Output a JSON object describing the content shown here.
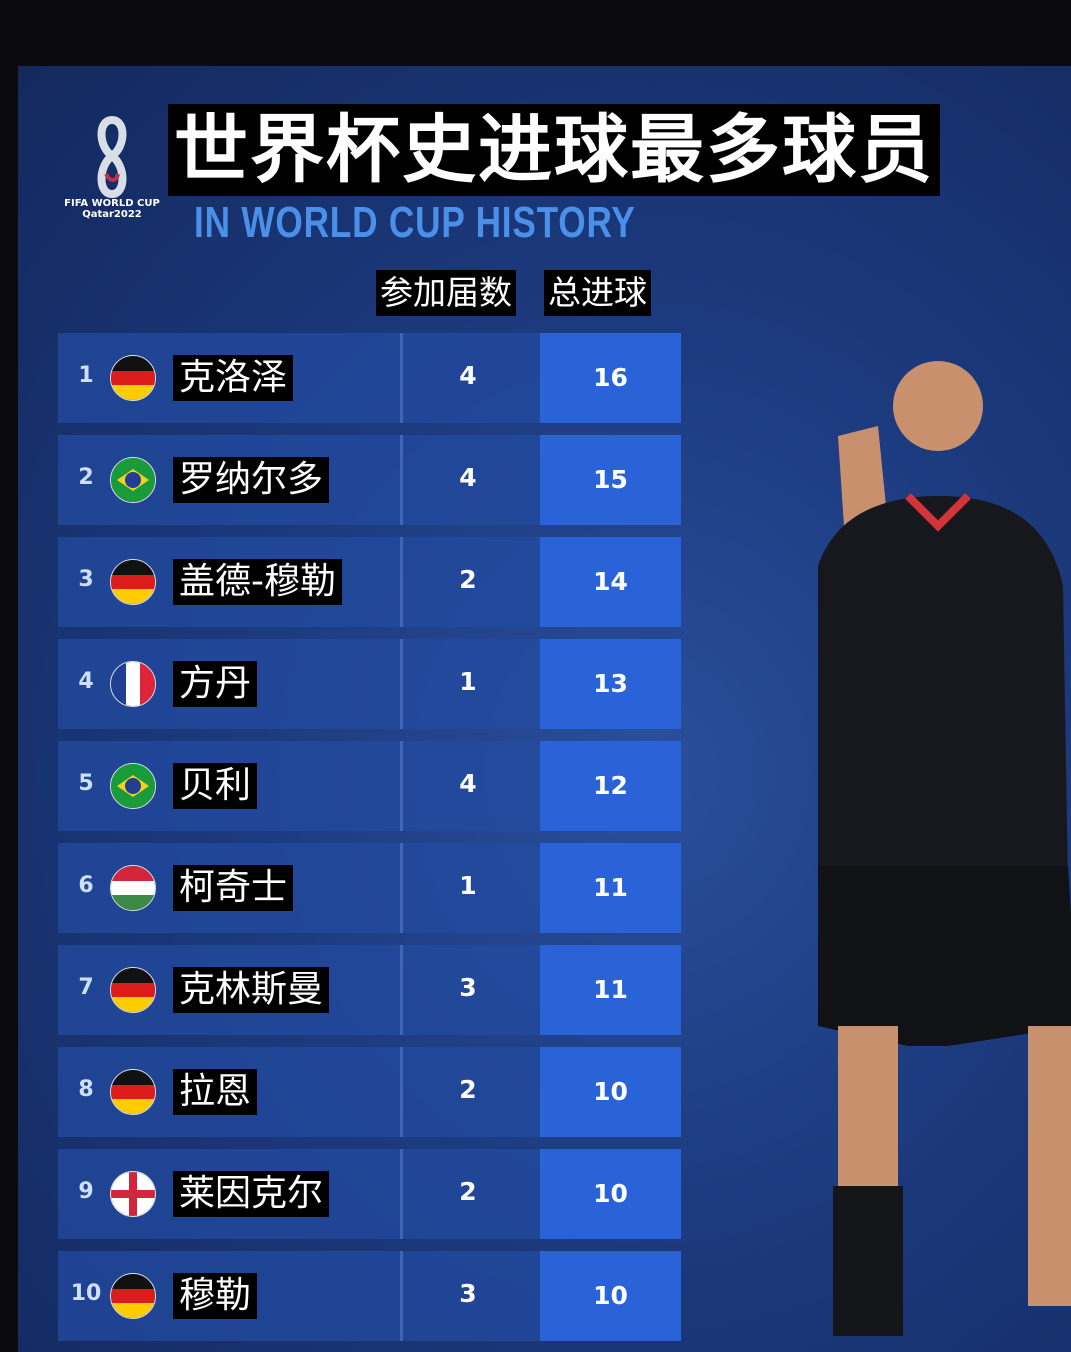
{
  "header": {
    "title": "世界杯史进球最多球员",
    "subtitle": "IN WORLD CUP HISTORY",
    "logo_text": [
      "FIFA WORLD CUP",
      "Qatar2022"
    ]
  },
  "columns": {
    "appearances": "参加届数",
    "goals": "总进球"
  },
  "rows": [
    {
      "rank": "1",
      "name": "克洛泽",
      "country": "germany",
      "tournaments": "4",
      "goals": "16"
    },
    {
      "rank": "2",
      "name": "罗纳尔多",
      "country": "brazil",
      "tournaments": "4",
      "goals": "15"
    },
    {
      "rank": "3",
      "name": "盖德-穆勒",
      "country": "germany",
      "tournaments": "2",
      "goals": "14"
    },
    {
      "rank": "4",
      "name": "方丹",
      "country": "france",
      "tournaments": "1",
      "goals": "13"
    },
    {
      "rank": "5",
      "name": "贝利",
      "country": "brazil",
      "tournaments": "4",
      "goals": "12"
    },
    {
      "rank": "6",
      "name": "柯奇士",
      "country": "hungary",
      "tournaments": "1",
      "goals": "11"
    },
    {
      "rank": "7",
      "name": "克林斯曼",
      "country": "germany",
      "tournaments": "3",
      "goals": "11"
    },
    {
      "rank": "8",
      "name": "拉恩",
      "country": "germany",
      "tournaments": "2",
      "goals": "10"
    },
    {
      "rank": "9",
      "name": "莱因克尔",
      "country": "england",
      "tournaments": "2",
      "goals": "10"
    },
    {
      "rank": "10",
      "name": "穆勒",
      "country": "germany",
      "tournaments": "3",
      "goals": "10"
    }
  ],
  "colors": {
    "background": "#1c3a7e",
    "goal_box": "#2a63d8",
    "subtitle": "#4a8fe8"
  }
}
